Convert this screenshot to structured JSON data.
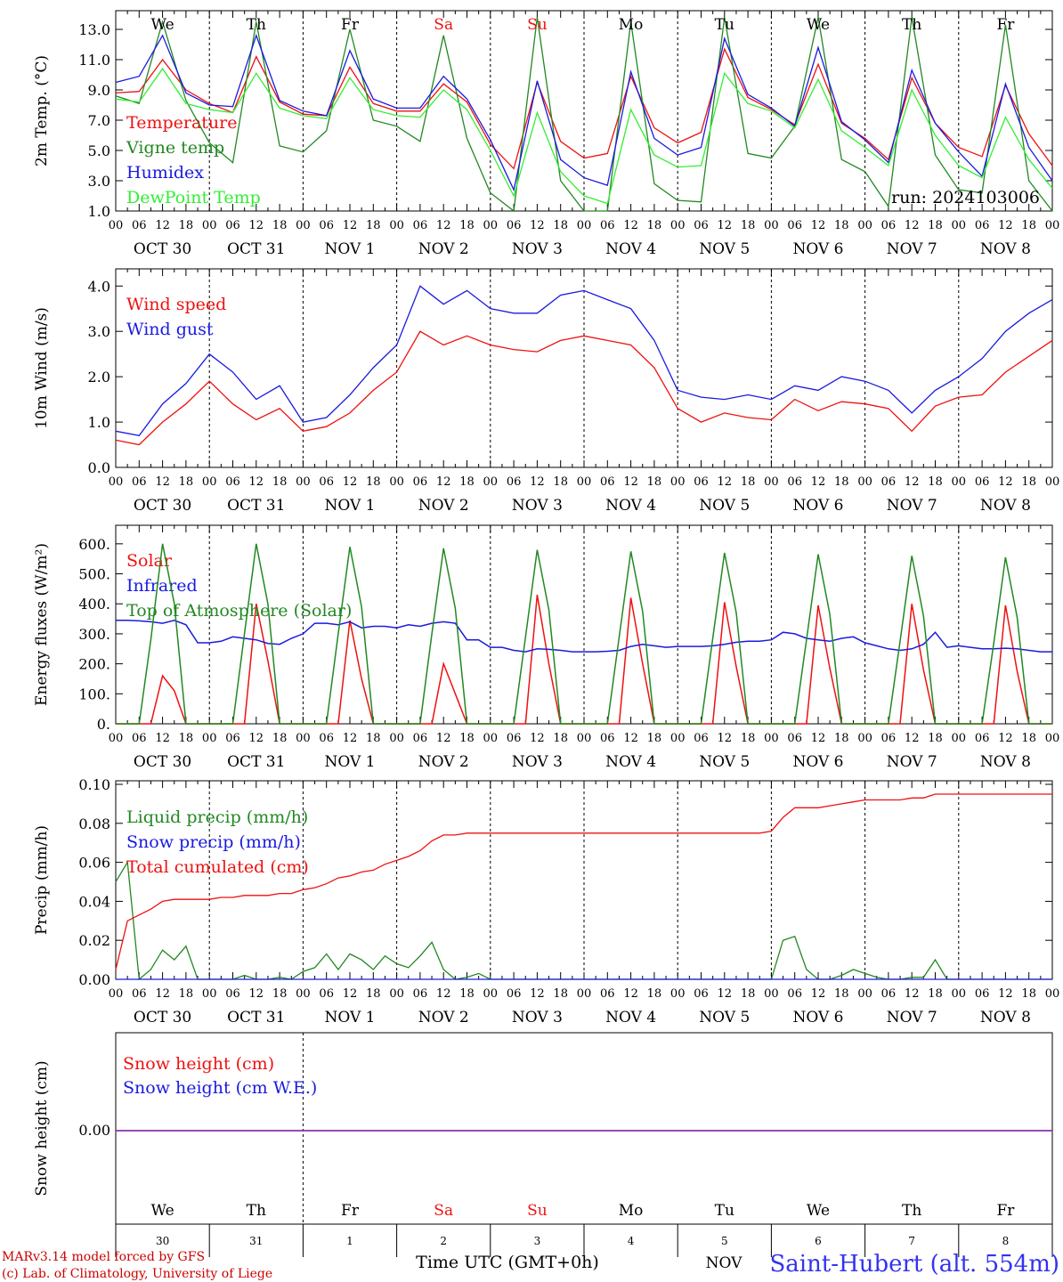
{
  "colors": {
    "red": "#ee1111",
    "green": "#228822",
    "blue": "#1a1ae0",
    "lightgreen": "#33ee33",
    "weekend": "#ee1111",
    "weekday": "#000000",
    "snow": "#8833aa"
  },
  "hours_per_day": [
    "00",
    "06",
    "12",
    "18"
  ],
  "final_hour_label": "00",
  "days": [
    {
      "weekday": "We",
      "date": "OCT 30",
      "num": "30",
      "weekend": false
    },
    {
      "weekday": "Th",
      "date": "OCT 31",
      "num": "31",
      "weekend": false
    },
    {
      "weekday": "Fr",
      "date": "NOV  1",
      "num": "1",
      "weekend": false
    },
    {
      "weekday": "Sa",
      "date": "NOV  2",
      "num": "2",
      "weekend": true
    },
    {
      "weekday": "Su",
      "date": "NOV  3",
      "num": "3",
      "weekend": true
    },
    {
      "weekday": "Mo",
      "date": "NOV  4",
      "num": "4",
      "weekend": false
    },
    {
      "weekday": "Tu",
      "date": "NOV  5",
      "num": "5",
      "weekend": false
    },
    {
      "weekday": "We",
      "date": "NOV  6",
      "num": "6",
      "weekend": false
    },
    {
      "weekday": "Th",
      "date": "NOV  7",
      "num": "7",
      "weekend": false
    },
    {
      "weekday": "Fr",
      "date": "NOV  8",
      "num": "8",
      "weekend": false
    }
  ],
  "run_label": "run: 2024103006",
  "footer": {
    "model": "MARv3.14 model forced by GFS",
    "lab": "(c) Lab. of Climatology, University of Liege",
    "xlabel": "Time UTC (GMT+0h)",
    "station": "Saint-Hubert (alt. 554m)",
    "overlap_text": "NOV"
  },
  "chart_data": [
    {
      "type": "line",
      "ylabel": "2m Temp. (°C)",
      "ylim": [
        1,
        14
      ],
      "y_ticks": [
        "1.0",
        "3.0",
        "5.0",
        "7.0",
        "9.0",
        "11.0",
        "13.0"
      ],
      "x": "hours since OCT 30 00 UTC, sampled every 6 h (0..240)",
      "series": [
        {
          "name": "Temperature",
          "color": "red",
          "values": [
            8.8,
            8.9,
            11.0,
            9.0,
            8.1,
            7.5,
            11.2,
            8.2,
            7.4,
            7.3,
            10.5,
            8.1,
            7.6,
            7.6,
            9.4,
            8.2,
            5.4,
            3.8,
            9.5,
            5.6,
            4.5,
            4.8,
            9.9,
            6.5,
            5.5,
            6.2,
            11.7,
            8.5,
            7.7,
            6.7,
            10.7,
            6.8,
            5.8,
            4.4,
            9.8,
            6.8,
            5.2,
            4.6,
            9.3,
            6.1,
            4.0
          ]
        },
        {
          "name": "Vigne temp",
          "color": "green",
          "values": [
            8.6,
            8.1,
            13.5,
            8.3,
            5.5,
            4.2,
            13.5,
            5.3,
            4.9,
            6.3,
            13.0,
            7.0,
            6.6,
            5.6,
            12.6,
            5.8,
            2.2,
            0.8,
            13.8,
            3.0,
            0.6,
            0.5,
            13.5,
            2.8,
            1.7,
            1.6,
            13.8,
            4.8,
            4.5,
            6.6,
            13.8,
            4.4,
            3.6,
            1.3,
            13.8,
            4.7,
            2.4,
            2.2,
            13.3,
            3.0,
            1.0
          ]
        },
        {
          "name": "Humidex",
          "color": "blue",
          "values": [
            9.5,
            9.9,
            12.6,
            8.8,
            8.0,
            7.9,
            12.6,
            8.3,
            7.6,
            7.3,
            11.6,
            8.4,
            7.8,
            7.8,
            9.9,
            8.4,
            5.7,
            2.4,
            9.6,
            4.4,
            3.2,
            2.7,
            10.2,
            5.8,
            4.7,
            5.2,
            12.4,
            8.7,
            7.8,
            6.6,
            11.8,
            6.9,
            5.7,
            4.2,
            10.3,
            6.8,
            4.9,
            3.3,
            9.4,
            5.2,
            3.0
          ]
        },
        {
          "name": "DewPoint Temp",
          "color": "lightgreen",
          "values": [
            8.4,
            8.2,
            10.4,
            8.1,
            7.7,
            7.5,
            10.1,
            7.8,
            7.3,
            7.1,
            9.8,
            7.7,
            7.3,
            7.2,
            9.0,
            7.7,
            5.0,
            2.0,
            7.5,
            3.6,
            2.0,
            1.5,
            7.7,
            4.7,
            3.9,
            4.0,
            10.1,
            8.1,
            7.6,
            6.5,
            9.7,
            6.3,
            5.2,
            4.0,
            9.0,
            6.0,
            4.0,
            3.2,
            7.2,
            4.4,
            2.5
          ]
        }
      ]
    },
    {
      "type": "line",
      "ylabel": "10m Wind (m/s)",
      "ylim": [
        0,
        4.3
      ],
      "y_ticks": [
        "0.0",
        "1.0",
        "2.0",
        "3.0",
        "4.0"
      ],
      "x": "hours since OCT 30 00 UTC, sampled every 6 h (0..240)",
      "series": [
        {
          "name": "Wind speed",
          "color": "red",
          "values": [
            0.6,
            0.5,
            1.0,
            1.4,
            1.9,
            1.4,
            1.05,
            1.3,
            0.8,
            0.9,
            1.2,
            1.7,
            2.1,
            3.0,
            2.7,
            2.9,
            2.7,
            2.6,
            2.55,
            2.8,
            2.9,
            2.8,
            2.7,
            2.2,
            1.3,
            1.0,
            1.2,
            1.1,
            1.05,
            1.5,
            1.25,
            1.45,
            1.4,
            1.3,
            0.8,
            1.35,
            1.55,
            1.6,
            2.1,
            2.45,
            2.8
          ]
        },
        {
          "name": "Wind gust",
          "color": "blue",
          "values": [
            0.8,
            0.7,
            1.4,
            1.85,
            2.5,
            2.1,
            1.5,
            1.8,
            1.0,
            1.1,
            1.6,
            2.2,
            2.7,
            4.0,
            3.6,
            3.9,
            3.5,
            3.4,
            3.4,
            3.8,
            3.9,
            3.7,
            3.5,
            2.8,
            1.7,
            1.55,
            1.5,
            1.6,
            1.5,
            1.8,
            1.7,
            2.0,
            1.9,
            1.7,
            1.2,
            1.7,
            2.0,
            2.4,
            3.0,
            3.4,
            3.7
          ]
        }
      ]
    },
    {
      "type": "line",
      "ylabel": "Energy fluxes (W/m²)",
      "ylim": [
        0,
        650
      ],
      "y_ticks": [
        "0.",
        "100.",
        "200.",
        "300.",
        "400.",
        "500.",
        "600."
      ],
      "x": "hours since OCT 30 00 UTC, sampled every 3 h (0..240)",
      "series": [
        {
          "name": "Solar",
          "color": "red",
          "values": [
            0,
            0,
            0,
            0,
            160,
            110,
            0,
            0,
            0,
            0,
            0,
            0,
            400,
            210,
            0,
            0,
            0,
            0,
            0,
            0,
            345,
            150,
            0,
            0,
            0,
            0,
            0,
            0,
            200,
            100,
            0,
            0,
            0,
            0,
            0,
            0,
            430,
            200,
            0,
            0,
            0,
            0,
            0,
            0,
            420,
            200,
            0,
            0,
            0,
            0,
            0,
            0,
            405,
            190,
            0,
            0,
            0,
            0,
            0,
            0,
            395,
            185,
            0,
            0,
            0,
            0,
            0,
            0,
            400,
            180,
            0,
            0,
            0,
            0,
            0,
            0,
            395,
            175,
            0,
            0,
            0
          ]
        },
        {
          "name": "Infrared",
          "color": "blue",
          "values": [
            345,
            345,
            343,
            340,
            335,
            345,
            330,
            270,
            270,
            275,
            290,
            285,
            280,
            268,
            265,
            285,
            300,
            335,
            335,
            330,
            340,
            320,
            325,
            325,
            320,
            330,
            325,
            335,
            340,
            335,
            280,
            280,
            255,
            255,
            245,
            240,
            250,
            248,
            245,
            240,
            240,
            240,
            242,
            245,
            258,
            265,
            260,
            255,
            258,
            258,
            258,
            260,
            265,
            272,
            275,
            275,
            280,
            305,
            300,
            285,
            280,
            275,
            285,
            290,
            270,
            260,
            250,
            245,
            250,
            265,
            305,
            255,
            260,
            255,
            250,
            250,
            252,
            250,
            245,
            240,
            240
          ]
        },
        {
          "name": "Top of Atmosphere (Solar)",
          "color": "green",
          "values": [
            0,
            0,
            0,
            280,
            600,
            400,
            0,
            0,
            0,
            0,
            0,
            300,
            600,
            400,
            0,
            0,
            0,
            0,
            0,
            300,
            590,
            390,
            0,
            0,
            0,
            0,
            0,
            300,
            585,
            385,
            0,
            0,
            0,
            0,
            0,
            290,
            580,
            380,
            0,
            0,
            0,
            0,
            0,
            290,
            575,
            375,
            0,
            0,
            0,
            0,
            0,
            285,
            570,
            370,
            0,
            0,
            0,
            0,
            0,
            280,
            565,
            365,
            0,
            0,
            0,
            0,
            0,
            275,
            560,
            360,
            0,
            0,
            0,
            0,
            0,
            270,
            555,
            355,
            0,
            0,
            0
          ]
        }
      ]
    },
    {
      "type": "line",
      "ylabel": "Precip (mm/h)",
      "ylim": [
        0,
        0.1
      ],
      "y_ticks": [
        "0.00",
        "0.02",
        "0.04",
        "0.06",
        "0.08",
        "0.10"
      ],
      "x": "hours since OCT 30 00 UTC, sampled every 3 h (0..240)",
      "series": [
        {
          "name": "Liquid precip (mm/h)",
          "color": "green",
          "values": [
            0.05,
            0.06,
            0.0,
            0.005,
            0.015,
            0.01,
            0.017,
            0.0,
            0.0,
            0.0,
            0.0,
            0.002,
            0.0,
            0.0,
            0.001,
            0.0,
            0.004,
            0.006,
            0.013,
            0.005,
            0.013,
            0.01,
            0.005,
            0.012,
            0.008,
            0.006,
            0.012,
            0.019,
            0.005,
            0.0,
            0.001,
            0.003,
            0.0,
            0.0,
            0.0,
            0.0,
            0.0,
            0.0,
            0.0,
            0.0,
            0.0,
            0.0,
            0.0,
            0.0,
            0.0,
            0.0,
            0.0,
            0.0,
            0.0,
            0.0,
            0.0,
            0.0,
            0.0,
            0.0,
            0.0,
            0.0,
            0.0,
            0.02,
            0.022,
            0.005,
            0.0,
            0.0,
            0.002,
            0.005,
            0.003,
            0.001,
            0.0,
            0.0,
            0.001,
            0.001,
            0.01,
            0.0,
            0.0,
            0.0,
            0.0,
            0.0,
            0.0,
            0.0,
            0.0,
            0.0,
            0.0
          ]
        },
        {
          "name": "Snow precip (mm/h)",
          "color": "blue",
          "values": [
            0,
            0,
            0,
            0,
            0,
            0,
            0,
            0,
            0,
            0,
            0,
            0,
            0,
            0,
            0,
            0,
            0,
            0,
            0,
            0,
            0,
            0,
            0,
            0,
            0,
            0,
            0,
            0,
            0,
            0,
            0,
            0,
            0,
            0,
            0,
            0,
            0,
            0,
            0,
            0,
            0,
            0,
            0,
            0,
            0,
            0,
            0,
            0,
            0,
            0,
            0,
            0,
            0,
            0,
            0,
            0,
            0,
            0,
            0,
            0,
            0,
            0,
            0,
            0,
            0,
            0,
            0,
            0,
            0,
            0,
            0,
            0,
            0,
            0,
            0,
            0,
            0,
            0,
            0,
            0,
            0
          ]
        },
        {
          "name": "Total cumulated (cm)",
          "color": "red",
          "values": [
            0.005,
            0.03,
            0.033,
            0.036,
            0.04,
            0.041,
            0.041,
            0.041,
            0.041,
            0.042,
            0.042,
            0.043,
            0.043,
            0.043,
            0.044,
            0.044,
            0.046,
            0.047,
            0.049,
            0.052,
            0.053,
            0.055,
            0.056,
            0.059,
            0.061,
            0.063,
            0.066,
            0.071,
            0.074,
            0.074,
            0.075,
            0.075,
            0.075,
            0.075,
            0.075,
            0.075,
            0.075,
            0.075,
            0.075,
            0.075,
            0.075,
            0.075,
            0.075,
            0.075,
            0.075,
            0.075,
            0.075,
            0.075,
            0.075,
            0.075,
            0.075,
            0.075,
            0.075,
            0.075,
            0.075,
            0.075,
            0.076,
            0.083,
            0.088,
            0.088,
            0.088,
            0.089,
            0.09,
            0.091,
            0.092,
            0.092,
            0.092,
            0.092,
            0.093,
            0.093,
            0.095,
            0.095,
            0.095,
            0.095,
            0.095,
            0.095,
            0.095,
            0.095,
            0.095,
            0.095,
            0.095
          ]
        }
      ]
    },
    {
      "type": "line",
      "ylabel": "Snow height (cm)",
      "y_ticks": [
        "0.00"
      ],
      "series": [
        {
          "name": "Snow height (cm)",
          "color": "red",
          "values": [
            0,
            0
          ]
        },
        {
          "name": "Snow height (cm W.E.)",
          "color": "blue",
          "values": [
            0,
            0
          ]
        }
      ]
    }
  ]
}
